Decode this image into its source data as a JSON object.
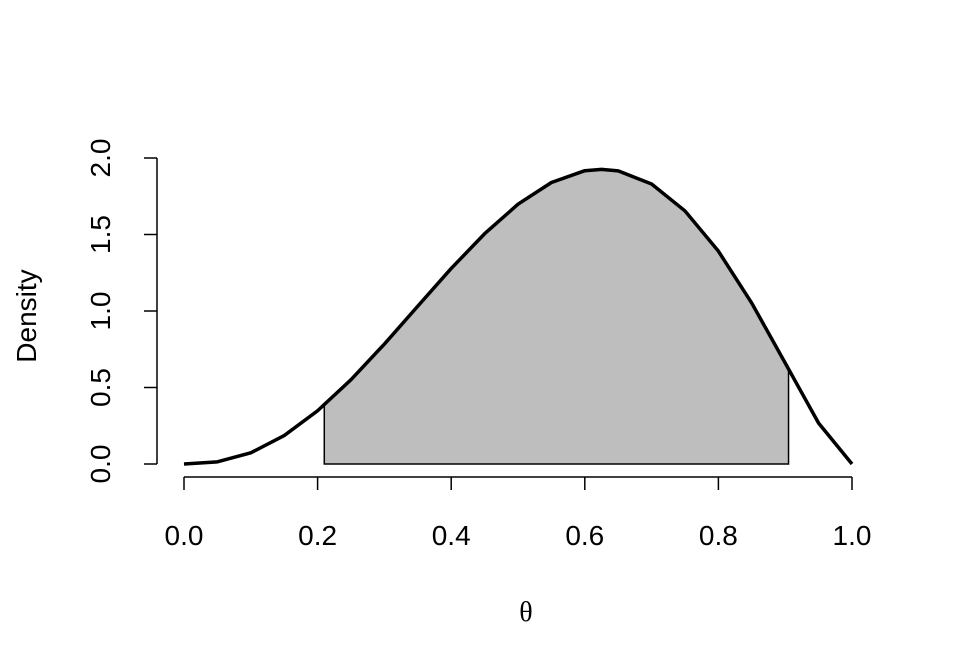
{
  "chart_data": {
    "type": "line",
    "x_label": "θ",
    "y_label": "Density",
    "x": [
      0,
      0.05,
      0.1,
      0.15,
      0.2,
      0.25,
      0.3,
      0.35,
      0.4,
      0.45,
      0.5,
      0.55,
      0.6,
      0.625,
      0.65,
      0.7,
      0.75,
      0.8,
      0.85,
      0.9,
      0.95,
      1
    ],
    "values": [
      0,
      0.014,
      0.073,
      0.186,
      0.348,
      0.551,
      0.784,
      1.032,
      1.278,
      1.505,
      1.698,
      1.84,
      1.917,
      1.926,
      1.916,
      1.83,
      1.654,
      1.391,
      1.051,
      0.66,
      0.267,
      0
    ],
    "color": "#000000",
    "shaded_interval": [
      0.21,
      0.905
    ],
    "shade_color": "#bebebe",
    "xlim": [
      0,
      1
    ],
    "xticks": [
      {
        "value": 0,
        "label": "0.0"
      },
      0.2,
      0.4,
      0.6,
      0.8,
      {
        "value": 1,
        "label": "1.0"
      }
    ],
    "ylim": [
      0,
      2
    ],
    "yticks": [
      {
        "value": 0,
        "label": "0.0"
      },
      0.5,
      {
        "value": 1,
        "label": "1.0"
      },
      1.5,
      {
        "value": 2,
        "label": "2.0"
      }
    ],
    "grid": false
  }
}
